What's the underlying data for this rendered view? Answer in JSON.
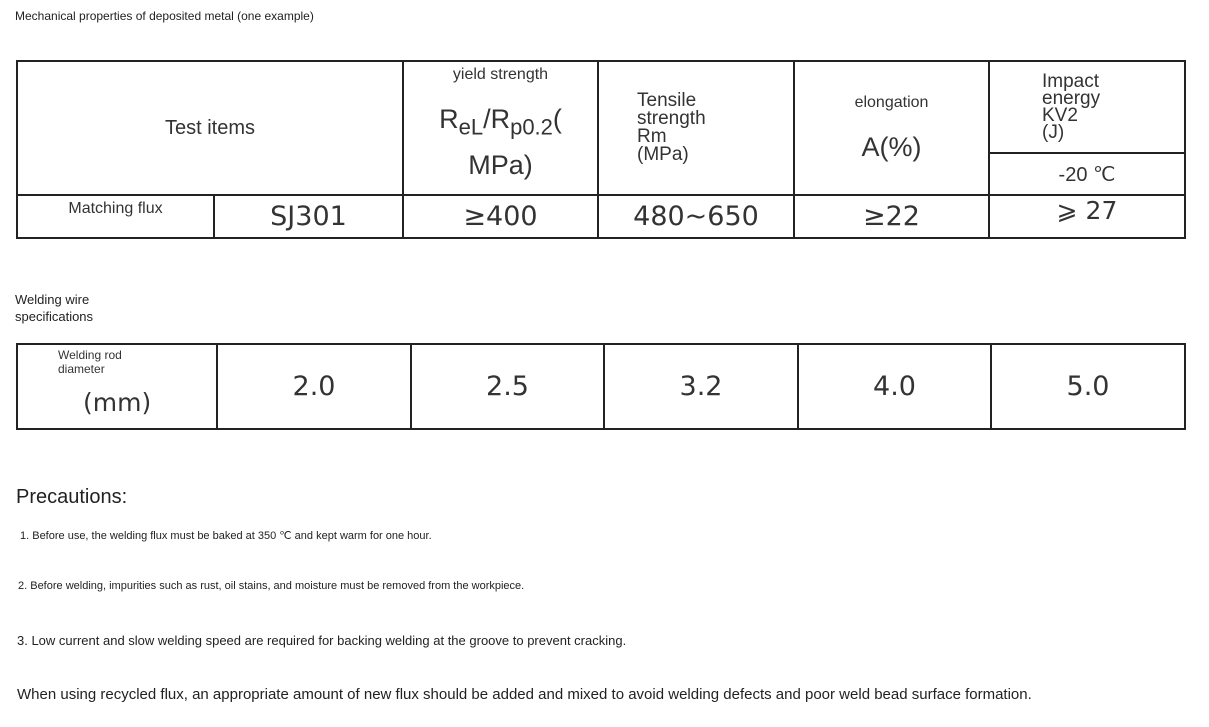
{
  "table1": {
    "caption": "Mechanical properties of deposited metal (one example)",
    "header": {
      "test_items": "Test items",
      "yield_label": "yield strength",
      "yield_symbol_r1": "R",
      "yield_sub1": "eL",
      "yield_slash": "/R",
      "yield_sub2": "p0.2",
      "yield_paren": "(",
      "yield_unit": "MPa)",
      "tensile_l1": "Tensile",
      "tensile_l2": "strength",
      "tensile_l3": "Rm",
      "tensile_l4": "(MPa)",
      "elongation_label": "elongation",
      "elongation_unit": "A(%)",
      "impact_l1": "Impact",
      "impact_l2": "energy",
      "impact_l3": "KV2",
      "impact_l4": "(J)",
      "impact_temp": "-20 ℃"
    },
    "row": {
      "label": "Matching flux",
      "flux": "SJ301",
      "yield": "≥400",
      "tensile": "480~650",
      "elongation": "≥22",
      "impact": "⩾ 27"
    }
  },
  "table2": {
    "caption_l1": "Welding wire",
    "caption_l2": "specifications",
    "label_l1": "Welding rod",
    "label_l2": "diameter",
    "label_unit": "(mm)",
    "values": [
      "2.0",
      "2.5",
      "3.2",
      "4.0",
      "5.0"
    ]
  },
  "precautions": {
    "title": "Precautions:",
    "items": [
      "1. Before use, the welding flux must be baked at 350 ℃ and kept warm for one hour.",
      "2. Before welding, impurities such as rust, oil stains, and moisture must be removed from the workpiece.",
      "3. Low current and slow welding speed are required for backing welding at the groove to prevent cracking."
    ],
    "note": "When using recycled flux, an appropriate amount of new flux should be added and mixed to avoid welding defects and poor weld bead surface formation."
  }
}
